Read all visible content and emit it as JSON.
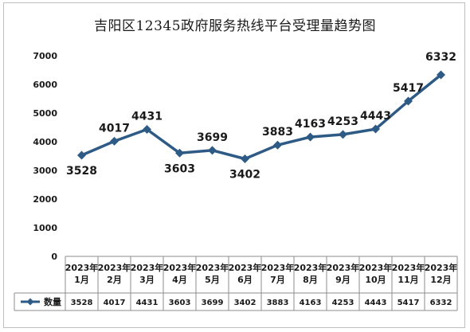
{
  "chart_data": {
    "type": "line",
    "title": "吉阳区12345政府服务热线平台受理量趋势图",
    "categories": [
      "2023年1月",
      "2023年2月",
      "2023年3月",
      "2023年4月",
      "2023年5月",
      "2023年6月",
      "2023年7月",
      "2023年8月",
      "2023年9月",
      "2023年10月",
      "2023年11月",
      "2023年12月"
    ],
    "category_lines": [
      [
        "2023年",
        "1月"
      ],
      [
        "2023年",
        "2月"
      ],
      [
        "2023年",
        "3月"
      ],
      [
        "2023年",
        "4月"
      ],
      [
        "2023年",
        "5月"
      ],
      [
        "2023年",
        "6月"
      ],
      [
        "2023年",
        "7月"
      ],
      [
        "2023年",
        "8月"
      ],
      [
        "2023年",
        "9月"
      ],
      [
        "2023年",
        "10月"
      ],
      [
        "2023年",
        "11月"
      ],
      [
        "2023年",
        "12月"
      ]
    ],
    "series": [
      {
        "name": "数量",
        "values": [
          3528,
          4017,
          4431,
          3603,
          3699,
          3402,
          3883,
          4163,
          4253,
          4443,
          5417,
          6332
        ],
        "color": "#2e5b86"
      }
    ],
    "ylim": [
      0,
      7000
    ],
    "yticks": [
      0,
      1000,
      2000,
      3000,
      4000,
      5000,
      6000,
      7000
    ],
    "label_placement": [
      "below",
      "above",
      "above",
      "below",
      "above",
      "below",
      "above",
      "above",
      "above",
      "above",
      "above",
      "above"
    ],
    "grid": false,
    "legend": "data-table",
    "data_table": true
  }
}
